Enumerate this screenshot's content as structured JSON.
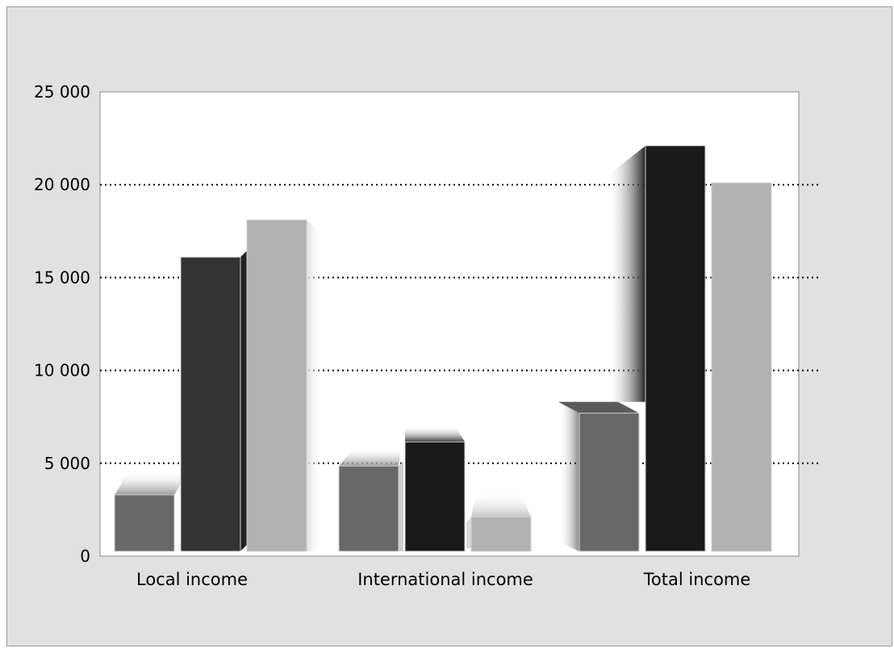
{
  "chart_data": {
    "type": "bar",
    "style": "3d-grouped",
    "categories": [
      "Local income",
      "International income",
      "Total income"
    ],
    "series": [
      {
        "values": [
          3300,
          4850,
          7700
        ],
        "color": "#686868"
      },
      {
        "values": [
          16100,
          6150,
          22100
        ],
        "color": "#333333",
        "color_alt": "#1a1a1a"
      },
      {
        "values": [
          18100,
          2100,
          20100
        ],
        "color": "#b2b2b2"
      }
    ],
    "ylim": [
      0,
      25000
    ],
    "yticks": [
      0,
      5000,
      10000,
      15000,
      20000,
      25000
    ],
    "ytick_labels": [
      "0",
      "5 000",
      "10 000",
      "15 000",
      "20 000",
      "25 000"
    ],
    "grid": true,
    "grid_style": "dotted",
    "legend": "none",
    "colors": {
      "background": "#e1e1e1",
      "plot_area": "#ffffff",
      "grid": "#000000"
    }
  }
}
